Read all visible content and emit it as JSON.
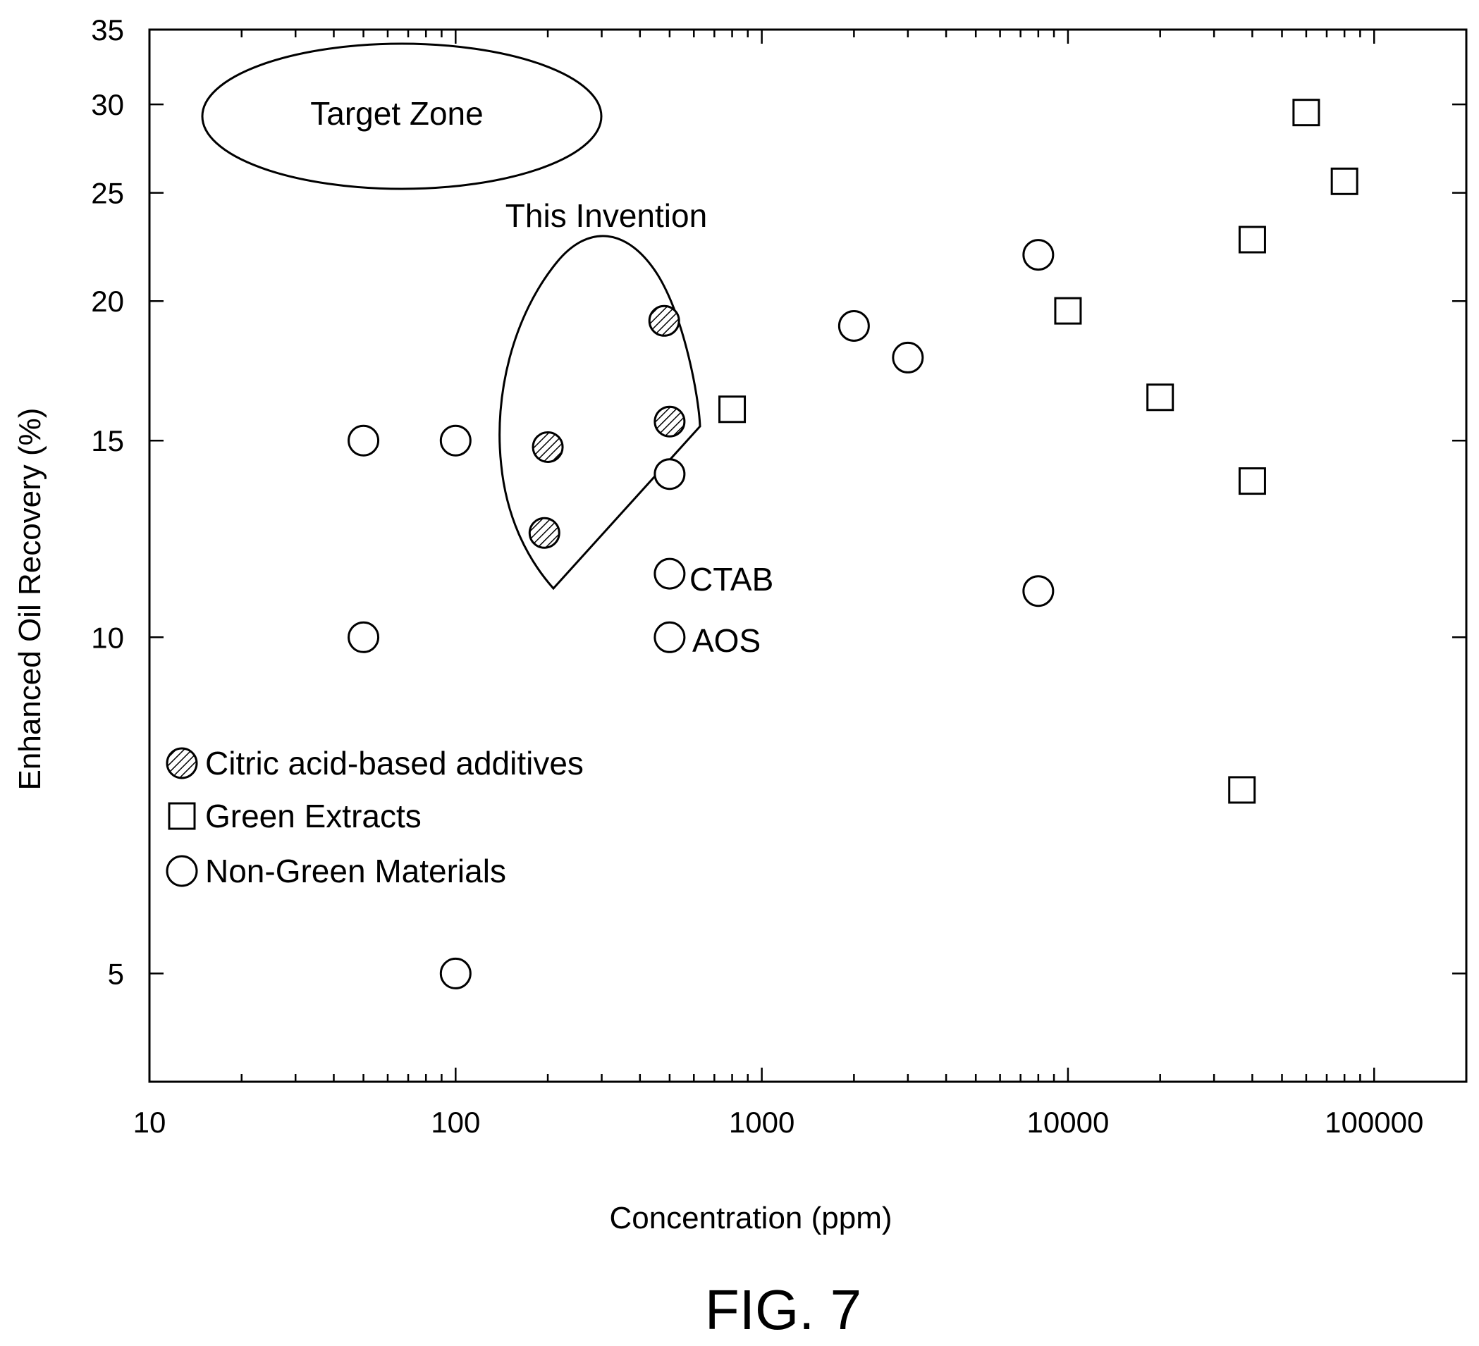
{
  "chart_data": {
    "type": "scatter",
    "xlabel": "Concentration (ppm)",
    "ylabel": "Enhanced Oil Recovery (%)",
    "x_scale": "log",
    "y_scale": "log",
    "xlim": [
      10,
      200000
    ],
    "ylim": [
      4,
      35
    ],
    "x_ticks": [
      10,
      100,
      1000,
      10000,
      100000
    ],
    "x_tick_labels": [
      "10",
      "100",
      "1000",
      "10000",
      "100000"
    ],
    "y_ticks": [
      5,
      10,
      15,
      20,
      25,
      30,
      35
    ],
    "y_tick_labels": [
      "5",
      "10",
      "15",
      "20",
      "25",
      "30",
      "35"
    ],
    "grid": false,
    "legend_position": "lower-left",
    "series": [
      {
        "name": "Citric acid-based additives",
        "marker": "hatched-circle",
        "points": [
          [
            480,
            19.2
          ],
          [
            500,
            15.6
          ],
          [
            200,
            14.8
          ],
          [
            195,
            12.4
          ]
        ]
      },
      {
        "name": "Green Extracts",
        "marker": "open-square",
        "points": [
          [
            800,
            16.0
          ],
          [
            10000,
            19.6
          ],
          [
            20000,
            16.4
          ],
          [
            40000,
            22.7
          ],
          [
            40000,
            13.8
          ],
          [
            60000,
            29.5
          ],
          [
            80000,
            25.6
          ],
          [
            37000,
            7.3
          ]
        ]
      },
      {
        "name": "Non-Green Materials",
        "marker": "open-circle",
        "points": [
          [
            50,
            15.0
          ],
          [
            100,
            15.0
          ],
          [
            50,
            10.0
          ],
          [
            100,
            5.0
          ],
          [
            500,
            14.0
          ],
          [
            500,
            11.4
          ],
          [
            500,
            10.0
          ],
          [
            2000,
            19.0
          ],
          [
            3000,
            17.8
          ],
          [
            8000,
            22.0
          ],
          [
            8000,
            11.0
          ]
        ]
      }
    ],
    "annotations": [
      {
        "id": "target-zone",
        "text": "Target Zone",
        "x": 60,
        "y": 29.2
      },
      {
        "id": "this-invention",
        "text": "This Invention",
        "x": 300,
        "y": 23.6
      },
      {
        "id": "ctab",
        "text": "CTAB",
        "x": 1000,
        "y": 11.4
      },
      {
        "id": "aos",
        "text": "AOS",
        "x": 1000,
        "y": 10.0
      }
    ]
  },
  "figure": {
    "label": "FIG. 7"
  }
}
